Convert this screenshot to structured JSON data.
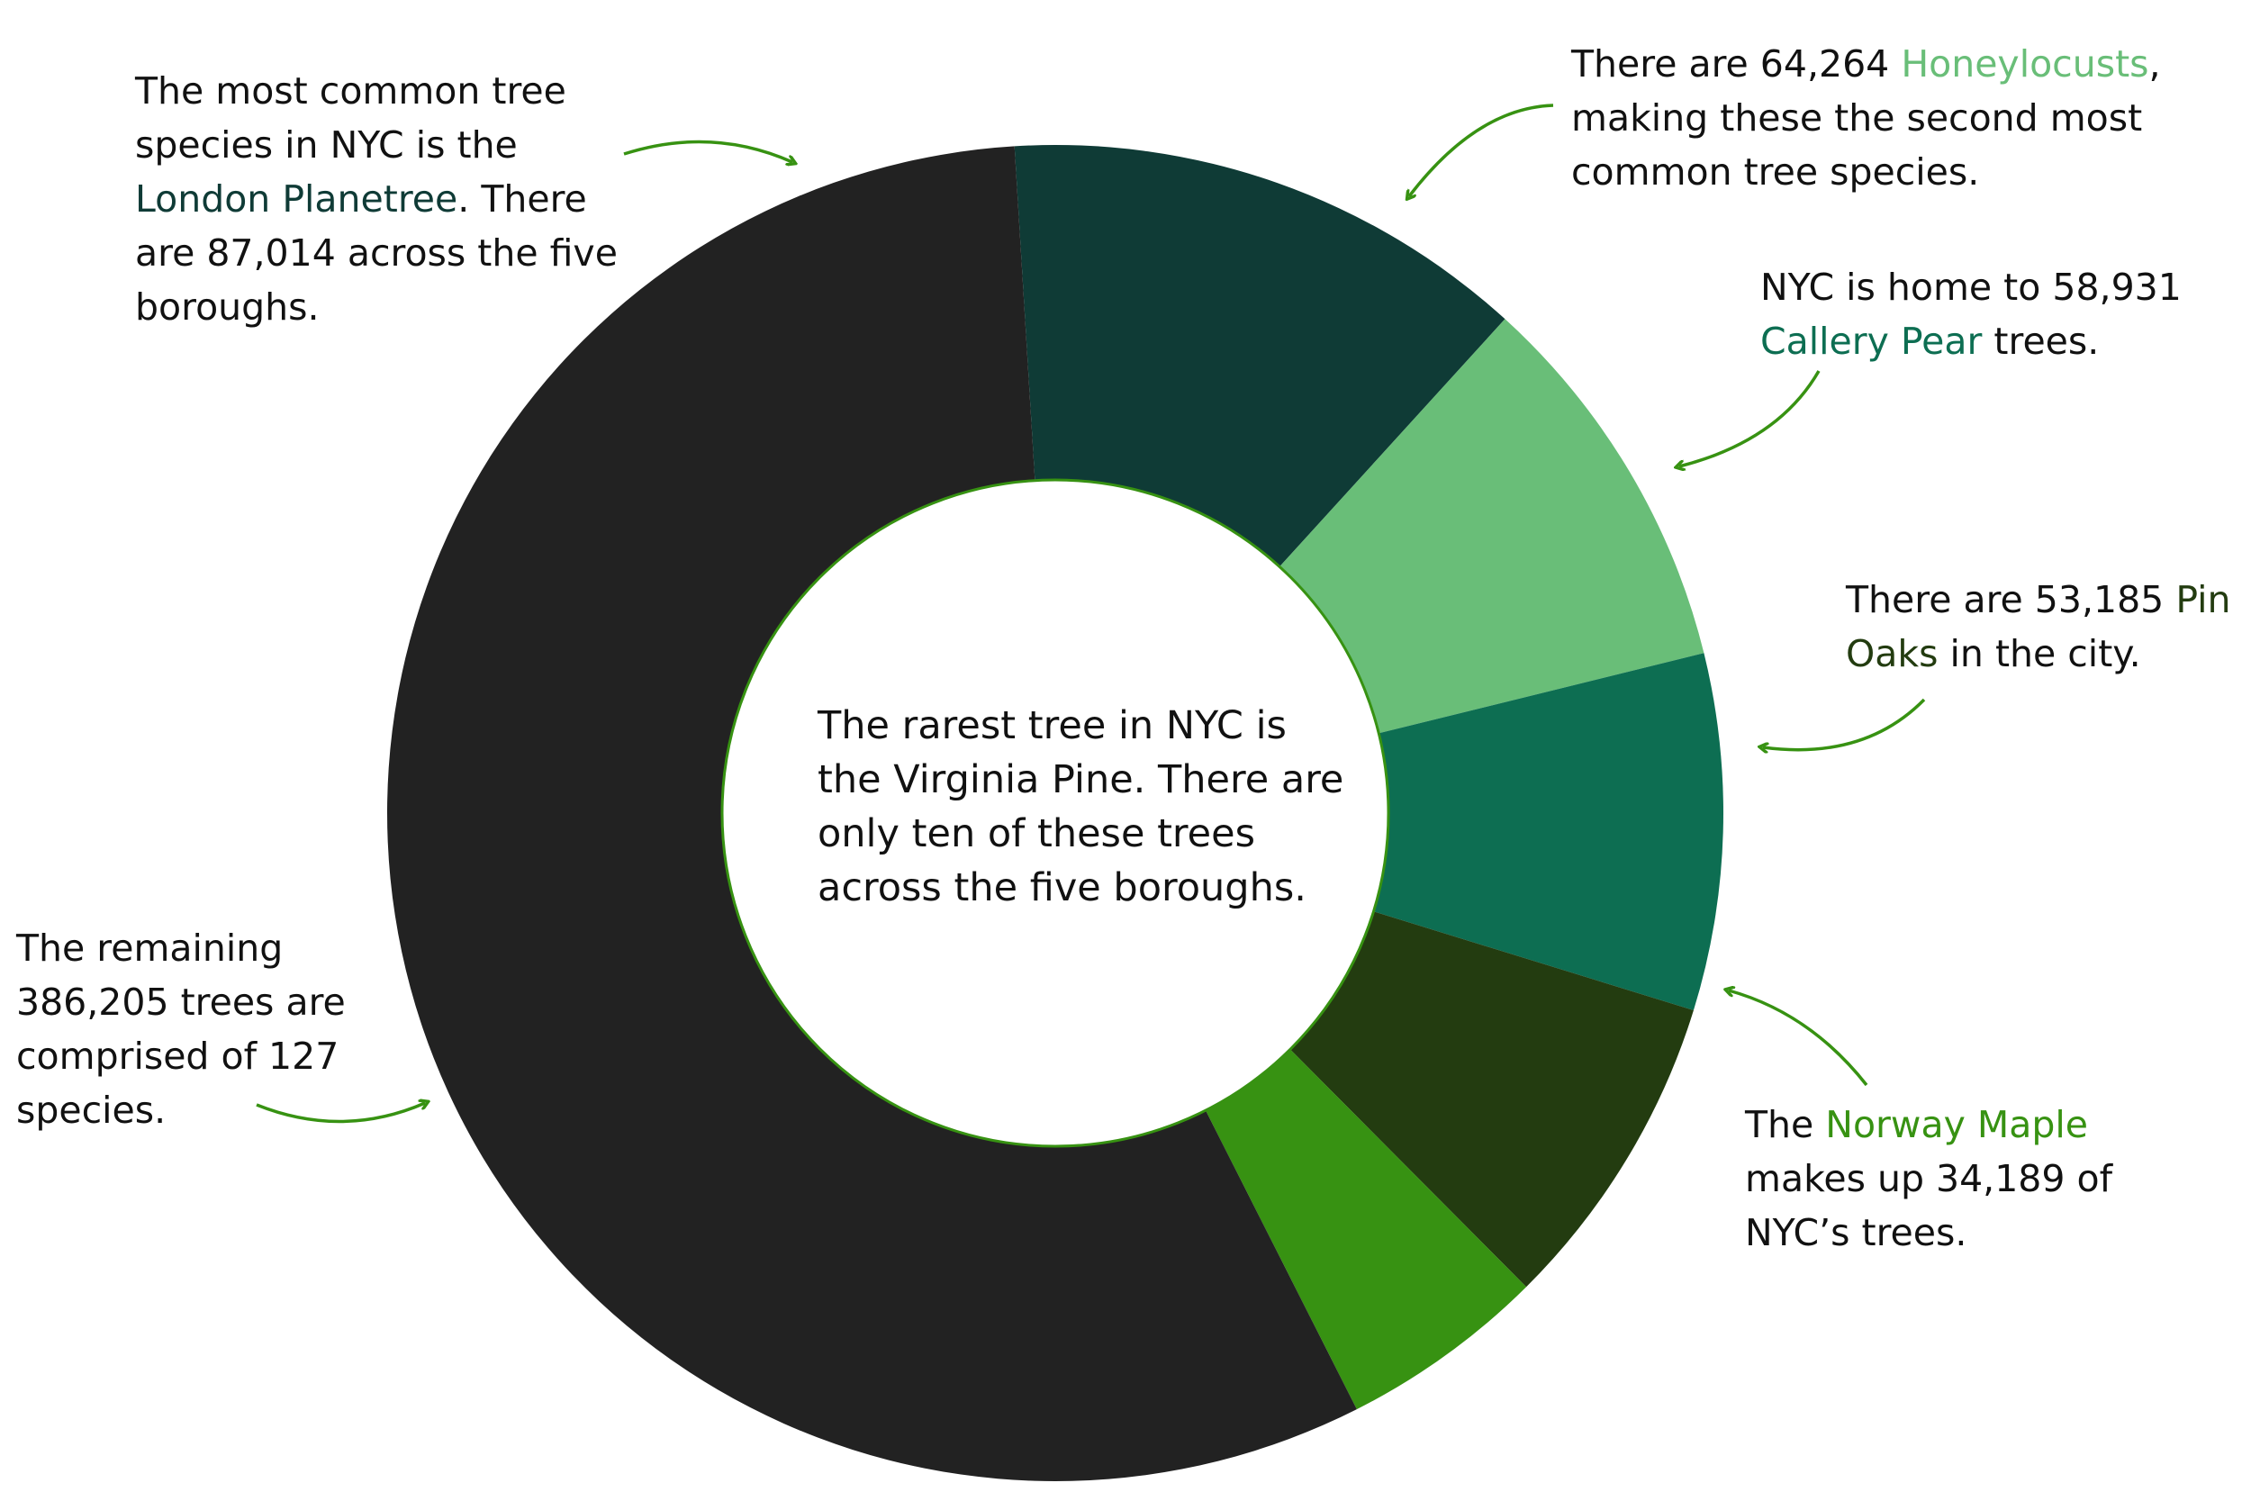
{
  "chart_data": {
    "type": "pie",
    "donut": true,
    "slices": [
      {
        "label": "London Planetree",
        "value": 87014,
        "color": "#0f3b36"
      },
      {
        "label": "Honeylocusts",
        "value": 64264,
        "color": "#69be78"
      },
      {
        "label": "Callery Pear",
        "value": 58931,
        "color": "#0d6e52"
      },
      {
        "label": "Pin Oaks",
        "value": 53185,
        "color": "#233c10"
      },
      {
        "label": "Norway Maple",
        "value": 34189,
        "color": "#379212"
      },
      {
        "label": "remaining",
        "value": 386205,
        "color": "#222222"
      }
    ],
    "center_ring_color": "#379212",
    "arrow_color": "#379212"
  },
  "notes": {
    "planetree": {
      "pre": "The most common tree species in NYC is the ",
      "name": "London Planetree",
      "post": ". There are  87,014 across the five boroughs.",
      "name_color": "#0f3b36"
    },
    "honeylocust": {
      "pre": "There are  64,264 ",
      "name": "Honeylocusts",
      "post": ", making these the second most common tree species.",
      "name_color": "#69be78"
    },
    "pear": {
      "pre": "NYC is home to 58,931 ",
      "name": "Callery Pear",
      "post": " trees.",
      "name_color": "#0d6e52"
    },
    "oak": {
      "pre": "There are 53,185 ",
      "name": "Pin Oaks",
      "post": " in the city.",
      "name_color": "#233c10"
    },
    "maple": {
      "pre": "The ",
      "name": "Norway Maple",
      "post": " makes up 34,189 of NYC’s trees.",
      "name_color": "#379212"
    },
    "remaining": {
      "text": "The remaining 386,205 trees are comprised of 127 species."
    },
    "center": {
      "text": "The rarest tree in NYC is the Virginia Pine. There are only ten of these trees across the five boroughs."
    }
  }
}
